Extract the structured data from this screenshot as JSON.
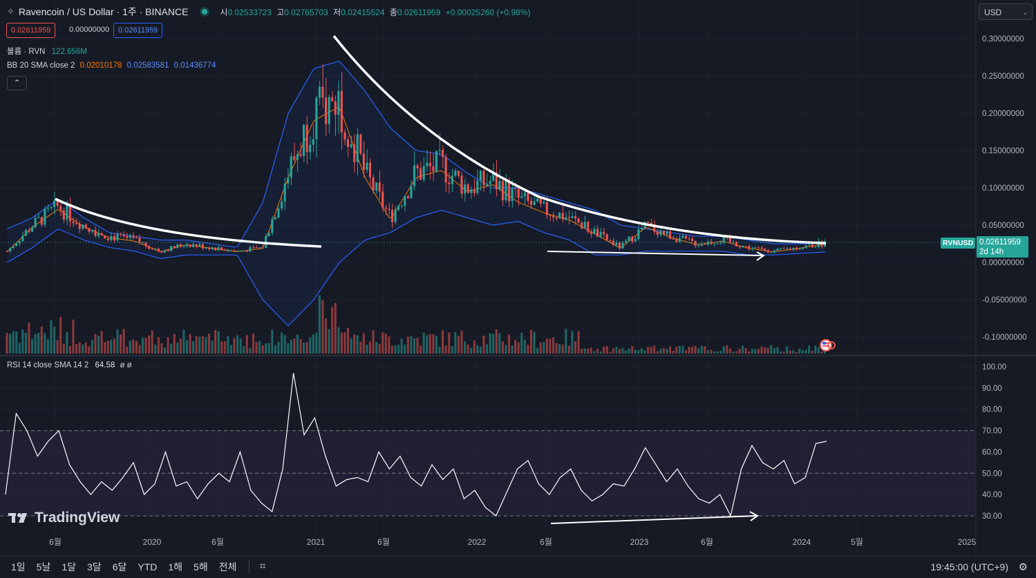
{
  "header": {
    "title": "Ravencoin / US Dollar · 1주 · BINANCE",
    "ohlc": [
      {
        "k": "시",
        "v": "0.02533723"
      },
      {
        "k": "고",
        "v": "0.02765703"
      },
      {
        "k": "저",
        "v": "0.02415524"
      },
      {
        "k": "종",
        "v": "0.02611959"
      }
    ],
    "change": "+0.00025260 (+0.98%)",
    "bid": "0.02611959",
    "spread": "0.00000000",
    "ask": "0.02611959"
  },
  "legends": {
    "volume_label": "볼륨 · RVN",
    "volume_value": "122.656M",
    "bb_label": "BB 20 SMA close 2",
    "bb_mid": "0.02010178",
    "bb_upper": "0.02583581",
    "bb_lower": "0.01436774",
    "rsi_label": "RSI 14 close SMA 14 2",
    "rsi_value": "64.58",
    "rsi_extra": "ø ø"
  },
  "currency": "USD",
  "price_tag": {
    "symbol": "RVNUSD",
    "price": "0.02611959",
    "countdown": "2d 14h"
  },
  "timeframes": [
    "1일",
    "5날",
    "1달",
    "3달",
    "6달",
    "YTD",
    "1해",
    "5해",
    "전체"
  ],
  "clock": "19:45:00 (UTC+9)",
  "logo_text": "TradingView",
  "colors": {
    "bg": "#161a25",
    "up": "#26a69a",
    "down": "#ef5350",
    "bb_band": "#2962ff",
    "bb_mid": "#f57c00",
    "rsi": "#ffffff",
    "rsi_zone": "#2a2540"
  },
  "chart_data": [
    {
      "type": "candlestick",
      "title": "Ravencoin / US Dollar · 1주 · BINANCE",
      "ylim": [
        -0.12,
        0.31
      ],
      "y_ticks": [
        "0.30000000",
        "0.25000000",
        "0.20000000",
        "0.15000000",
        "0.10000000",
        "0.05000000",
        "0.00000000",
        "-0.05000000",
        "-0.10000000"
      ],
      "x_ticks": [
        "6월",
        "2020",
        "6월",
        "2021",
        "6월",
        "2022",
        "6월",
        "2023",
        "6월",
        "2024",
        "5월",
        "2025"
      ],
      "series": [
        {
          "name": "close",
          "x": [
            "2019-03",
            "2019-05",
            "2019-06",
            "2019-08",
            "2019-10",
            "2019-12",
            "2020-03",
            "2020-06",
            "2020-09",
            "2020-12",
            "2021-01",
            "2021-02",
            "2021-03",
            "2021-04",
            "2021-05",
            "2021-06",
            "2021-08",
            "2021-09",
            "2021-11",
            "2021-12",
            "2022-01",
            "2022-03",
            "2022-04",
            "2022-05",
            "2022-06",
            "2022-08",
            "2022-09",
            "2022-12",
            "2023-03",
            "2023-06",
            "2023-09",
            "2023-12",
            "2024-03"
          ],
          "values": [
            0.015,
            0.05,
            0.075,
            0.05,
            0.035,
            0.03,
            0.015,
            0.025,
            0.02,
            0.015,
            0.02,
            0.12,
            0.2,
            0.22,
            0.12,
            0.06,
            0.12,
            0.13,
            0.1,
            0.11,
            0.085,
            0.07,
            0.06,
            0.04,
            0.02,
            0.05,
            0.035,
            0.025,
            0.03,
            0.02,
            0.015,
            0.02,
            0.026
          ]
        },
        {
          "name": "BB upper",
          "values": [
            0.045,
            0.06,
            0.085,
            0.06,
            0.04,
            0.035,
            0.03,
            0.03,
            0.025,
            0.02,
            0.08,
            0.2,
            0.26,
            0.27,
            0.23,
            0.18,
            0.15,
            0.145,
            0.12,
            0.1,
            0.1,
            0.09,
            0.08,
            0.07,
            0.05,
            0.045,
            0.04,
            0.035,
            0.035,
            0.03,
            0.025,
            0.025,
            0.026
          ]
        },
        {
          "name": "BB lower",
          "values": [
            0.0,
            0.02,
            0.045,
            0.03,
            0.02,
            0.015,
            0.005,
            0.01,
            0.01,
            0.01,
            -0.05,
            -0.085,
            -0.05,
            0.0,
            0.03,
            0.04,
            0.06,
            0.07,
            0.06,
            0.05,
            0.055,
            0.04,
            0.03,
            0.01,
            0.01,
            0.015,
            0.015,
            0.015,
            0.015,
            0.01,
            0.01,
            0.012,
            0.014
          ]
        }
      ]
    },
    {
      "type": "line",
      "title": "RSI 14 close SMA 14 2",
      "ylim": [
        30,
        100
      ],
      "y_ticks": [
        "100.00",
        "90.00",
        "80.00",
        "70.00",
        "60.00",
        "50.00",
        "40.00",
        "30.00"
      ],
      "levels": [
        70,
        50,
        30
      ],
      "series": [
        {
          "name": "RSI",
          "values": [
            40,
            78,
            70,
            58,
            65,
            70,
            54,
            46,
            40,
            46,
            42,
            48,
            55,
            40,
            45,
            60,
            44,
            46,
            38,
            45,
            50,
            46,
            60,
            42,
            36,
            32,
            52,
            97,
            68,
            76,
            58,
            44,
            47,
            48,
            46,
            60,
            52,
            58,
            48,
            44,
            54,
            47,
            52,
            38,
            42,
            34,
            30,
            41,
            52,
            56,
            45,
            40,
            48,
            52,
            42,
            37,
            40,
            45,
            44,
            52,
            62,
            54,
            46,
            52,
            44,
            38,
            36,
            40,
            30,
            52,
            63,
            55,
            52,
            56,
            45,
            48,
            64,
            65
          ]
        }
      ]
    }
  ]
}
